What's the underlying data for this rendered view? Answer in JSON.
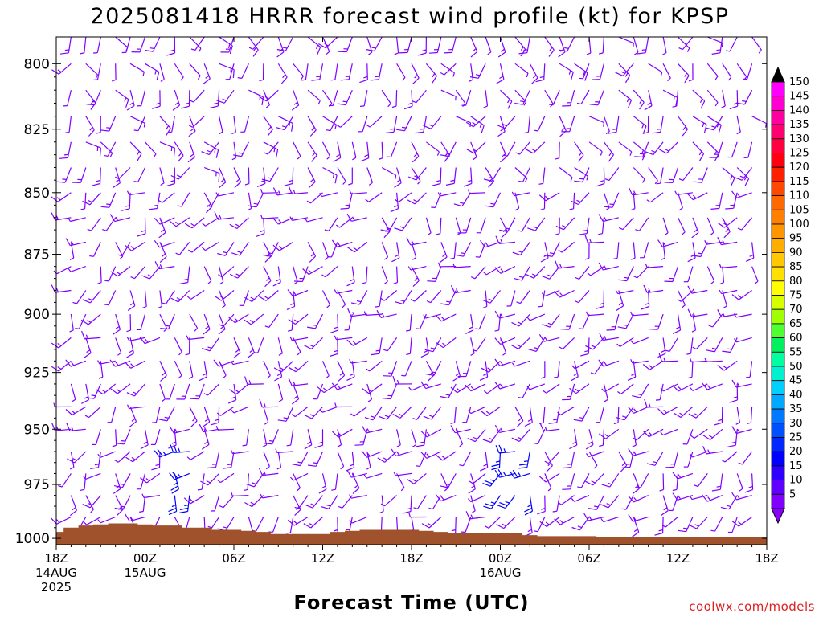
{
  "chart_data": {
    "type": "wind-barb-time-height",
    "title": "2025081418 HRRR forecast wind profile (kt) for KPSP",
    "xlabel": "Forecast Time (UTC)",
    "ylabel": "",
    "y_scale": "log-pressure",
    "y_range_hPa": [
      1003,
      790
    ],
    "y_ticks": [
      "800",
      "825",
      "850",
      "875",
      "900",
      "925",
      "950",
      "975",
      "1000"
    ],
    "x_range_hours": [
      0,
      48
    ],
    "x_ticks": [
      {
        "hour": 0,
        "label": "18Z",
        "sub1": "14AUG",
        "sub2": "2025"
      },
      {
        "hour": 6,
        "label": "00Z",
        "sub1": "15AUG",
        "sub2": ""
      },
      {
        "hour": 12,
        "label": "06Z",
        "sub1": "",
        "sub2": ""
      },
      {
        "hour": 18,
        "label": "12Z",
        "sub1": "",
        "sub2": ""
      },
      {
        "hour": 24,
        "label": "18Z",
        "sub1": "",
        "sub2": ""
      },
      {
        "hour": 30,
        "label": "00Z",
        "sub1": "16AUG",
        "sub2": ""
      },
      {
        "hour": 36,
        "label": "06Z",
        "sub1": "",
        "sub2": ""
      },
      {
        "hour": 42,
        "label": "12Z",
        "sub1": "",
        "sub2": ""
      },
      {
        "hour": 48,
        "label": "18Z",
        "sub1": "",
        "sub2": ""
      }
    ],
    "barb_levels_hPa": [
      790,
      800,
      810,
      820,
      830,
      840,
      850,
      860,
      870,
      880,
      890,
      900,
      910,
      920,
      930,
      940,
      950,
      960,
      970,
      980,
      990
    ],
    "terrain_surface_pressure_hPa": [
      997,
      995,
      994,
      993.5,
      993,
      993,
      993.5,
      994,
      994,
      995,
      995,
      996,
      996,
      996.5,
      997,
      998,
      998,
      998,
      998,
      997,
      996.5,
      996,
      996,
      996,
      996,
      996.5,
      997,
      997.5,
      997.5,
      997.5,
      997.5,
      997.5,
      998.5,
      999,
      999,
      999,
      999,
      999.5,
      999.5,
      999.5,
      999.5,
      999.5,
      999.5,
      999.5,
      999.5,
      999.5,
      999.5,
      999.5,
      999.5
    ],
    "strong_wind_regions": [
      {
        "hours": [
          8,
          9
        ],
        "levels_hPa": [
          960,
          980
        ],
        "speed_kt": "20-25"
      },
      {
        "hours": [
          30,
          31,
          32
        ],
        "levels_hPa": [
          960,
          980
        ],
        "speed_kt": "20-25"
      }
    ],
    "typical_speed_kt": "5-15",
    "colorbar": {
      "labels": [
        "150",
        "145",
        "140",
        "135",
        "130",
        "125",
        "120",
        "115",
        "110",
        "105",
        "100",
        "95",
        "90",
        "85",
        "80",
        "75",
        "70",
        "65",
        "60",
        "55",
        "50",
        "45",
        "40",
        "35",
        "30",
        "25",
        "20",
        "15",
        "10",
        "5"
      ],
      "colors": [
        "#ff00ff",
        "#ff00d0",
        "#ff00a0",
        "#ff0070",
        "#ff0040",
        "#ff0010",
        "#ff2000",
        "#ff4800",
        "#ff6a00",
        "#ff8000",
        "#ff9600",
        "#ffae00",
        "#ffc800",
        "#ffe000",
        "#ffff00",
        "#d8ff00",
        "#a0ff00",
        "#50ff30",
        "#00f060",
        "#00ffa0",
        "#00f0d0",
        "#00d0ff",
        "#00a8ff",
        "#0078ff",
        "#0050ff",
        "#0028ff",
        "#0000ff",
        "#3000ff",
        "#6000ff",
        "#8000ff"
      ],
      "top_arrow_color": "#000000",
      "bottom_arrow_color": "#8a00ff"
    },
    "colors": {
      "barb_light": "#8000ff",
      "barb_strong": "#0000ff",
      "terrain": "#a0522d"
    }
  },
  "credit": "coolwx.com/models"
}
